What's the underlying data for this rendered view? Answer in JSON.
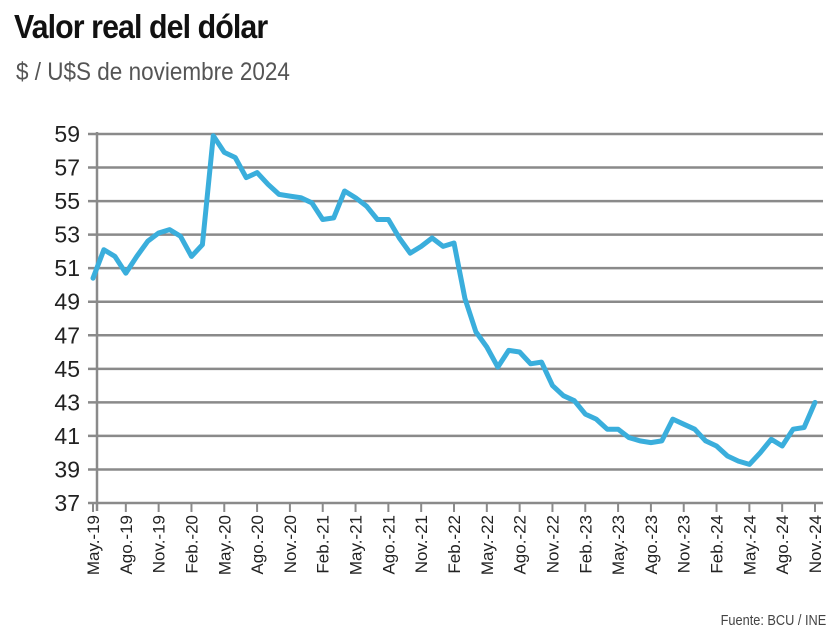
{
  "chart_data": {
    "type": "line",
    "title": "Valor real del dólar",
    "subtitle": "$ / U$S de noviembre 2024",
    "source": "Fuente: BCU / INE",
    "xlabel": "",
    "ylabel": "",
    "ylim": [
      37,
      59
    ],
    "yticks": [
      59,
      57,
      55,
      53,
      51,
      49,
      47,
      45,
      43,
      41,
      39,
      37
    ],
    "x_tick_labels": [
      "May.-19",
      "Ago.-19",
      "Nov.-19",
      "Feb.-20",
      "May.-20",
      "Ago.-20",
      "Nov.-20",
      "Feb.-21",
      "May.-21",
      "Ago.-21",
      "Nov.-21",
      "Feb.-22",
      "May.-22",
      "Ago.-22",
      "Nov.-22",
      "Feb.-23",
      "May.-23",
      "Ago.-23",
      "Nov.-23",
      "Feb.-24",
      "May.-24",
      "Ago.-24",
      "Nov.-24"
    ],
    "grid": true,
    "series": [
      {
        "name": "Valor real del dólar",
        "color": "#3aaedc",
        "start": "May.-19",
        "frequency": "monthly",
        "values": [
          50.4,
          52.1,
          51.7,
          50.7,
          51.7,
          52.6,
          53.1,
          53.3,
          52.9,
          51.7,
          52.4,
          58.9,
          57.9,
          57.6,
          56.4,
          56.7,
          56.0,
          55.4,
          55.3,
          55.2,
          54.9,
          53.9,
          54.0,
          55.6,
          55.2,
          54.7,
          53.9,
          53.9,
          52.8,
          51.9,
          52.3,
          52.8,
          52.3,
          52.5,
          49.2,
          47.2,
          46.3,
          45.1,
          46.1,
          46.0,
          45.3,
          45.4,
          44.0,
          43.4,
          43.1,
          42.3,
          42.0,
          41.4,
          41.4,
          40.9,
          40.7,
          40.6,
          40.7,
          42.0,
          41.7,
          41.4,
          40.7,
          40.4,
          39.8,
          39.5,
          39.3,
          40.0,
          40.8,
          40.4,
          41.4,
          41.5,
          43.0
        ]
      }
    ]
  }
}
